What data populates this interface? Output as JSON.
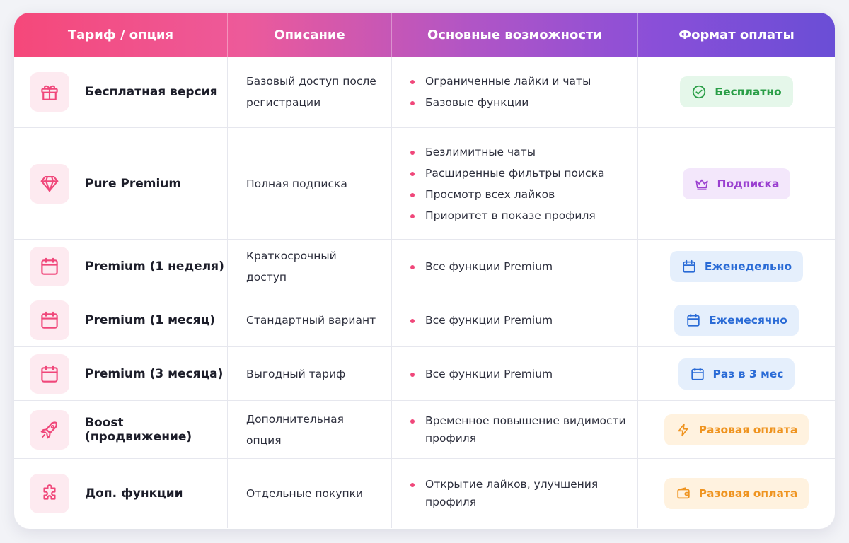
{
  "headers": {
    "tariff": "Тариф / опция",
    "description": "Описание",
    "features": "Основные возможности",
    "payment": "Формат оплаты"
  },
  "rows": [
    {
      "icon": "gift-icon",
      "name": "Бесплатная версия",
      "description": "Базовый доступ после регистрации",
      "features": [
        "Ограниченные лайки и чаты",
        "Базовые функции"
      ],
      "badge": {
        "label": "Бесплатно",
        "icon": "check-circle-icon",
        "color": "#2a9e47"
      }
    },
    {
      "icon": "diamond-icon",
      "name": "Pure Premium",
      "description": "Полная подписка",
      "features": [
        "Безлимитные чаты",
        "Расширенные фильтры поиска",
        "Просмотр всех лайков",
        "Приоритет в показе профиля"
      ],
      "badge": {
        "label": "Подписка",
        "icon": "crown-icon",
        "color": "#9a3fd0"
      }
    },
    {
      "icon": "calendar-icon",
      "name": "Premium (1 неделя)",
      "description": "Краткосрочный доступ",
      "features": [
        "Все функции Premium"
      ],
      "badge": {
        "label": "Еженедельно",
        "icon": "calendar-icon",
        "color": "#2a6bd6"
      }
    },
    {
      "icon": "calendar-icon",
      "name": "Premium (1 месяц)",
      "description": "Стандартный вариант",
      "features": [
        "Все функции Premium"
      ],
      "badge": {
        "label": "Ежемесячно",
        "icon": "calendar-icon",
        "color": "#2a6bd6"
      }
    },
    {
      "icon": "calendar-icon",
      "name": "Premium (3 месяца)",
      "description": "Выгодный тариф",
      "features": [
        "Все функции Premium"
      ],
      "badge": {
        "label": "Раз в 3 мес",
        "icon": "calendar-icon",
        "color": "#2a6bd6"
      }
    },
    {
      "icon": "rocket-icon",
      "name": "Boost (продвижение)",
      "description": "Дополнительная опция",
      "features": [
        "Временное повышение видимости профиля"
      ],
      "badge": {
        "label": "Разовая оплата",
        "icon": "lightning-icon",
        "color": "#ef9420"
      }
    },
    {
      "icon": "puzzle-icon",
      "name": "Доп. функции",
      "description": "Отдельные покупки",
      "features": [
        "Открытие лайков, улучшения профиля"
      ],
      "badge": {
        "label": "Разовая оплата",
        "icon": "wallet-icon",
        "color": "#ef9420"
      }
    }
  ]
}
